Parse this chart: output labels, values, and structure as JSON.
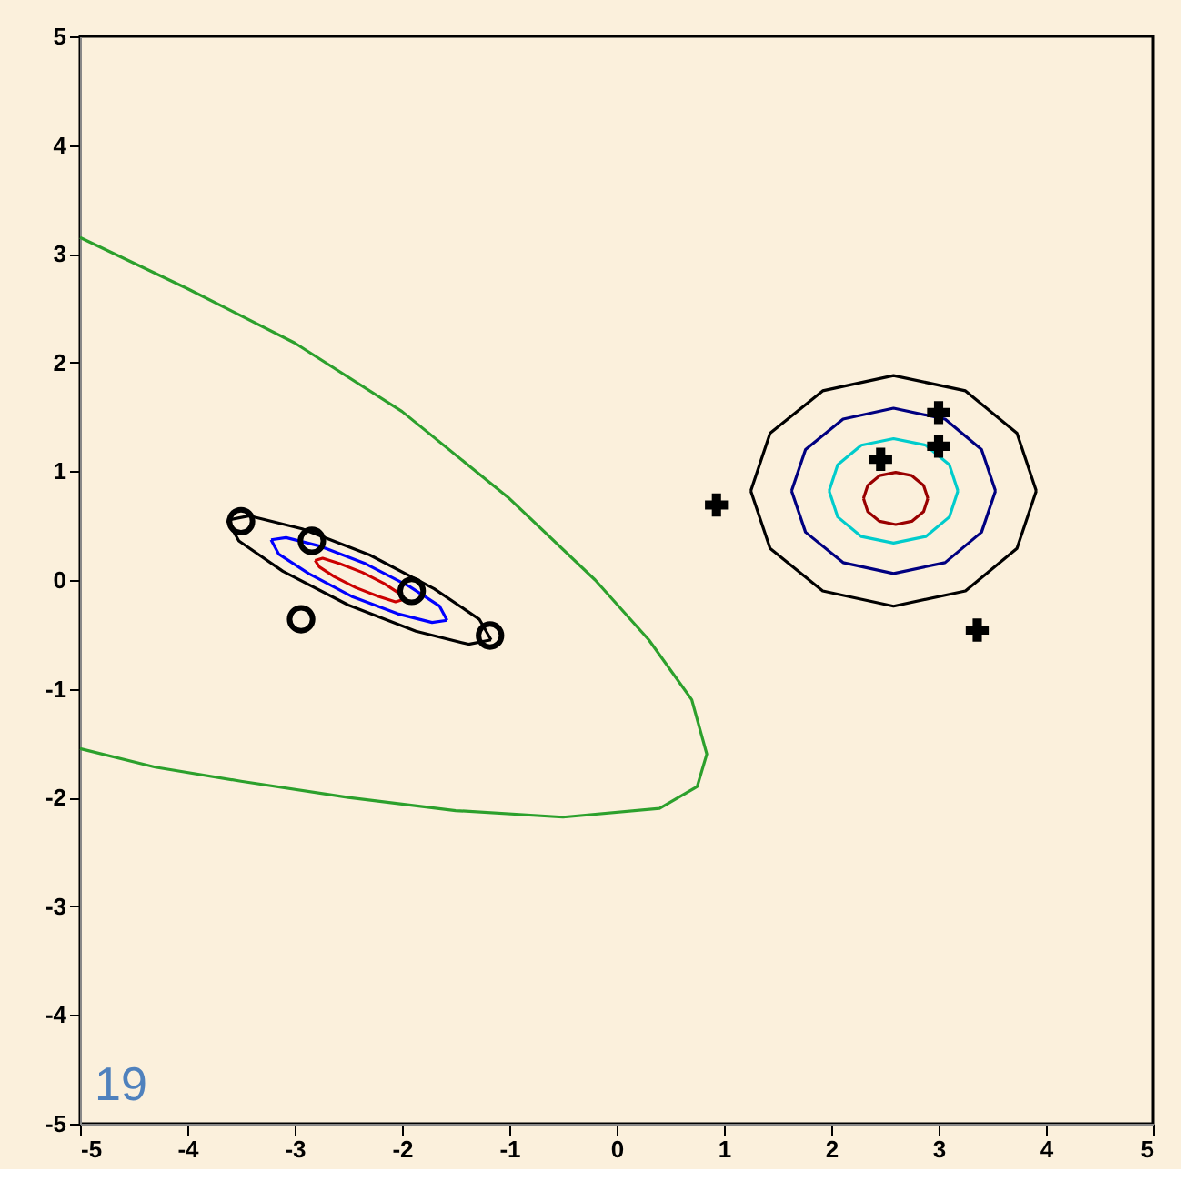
{
  "chart_data": {
    "type": "scatter",
    "xlim": [
      -5,
      5
    ],
    "ylim": [
      -5,
      5
    ],
    "xticks": [
      -5,
      -4,
      -3,
      -2,
      -1,
      0,
      1,
      2,
      3,
      4,
      5
    ],
    "yticks": [
      -5,
      -4,
      -3,
      -2,
      -1,
      0,
      1,
      2,
      3,
      4,
      5
    ],
    "grid": false,
    "annotations": [
      "19"
    ],
    "series": [
      {
        "type": "line",
        "color": "#2ca02c",
        "x": [
          -5,
          -4,
          -3,
          -2,
          -1,
          -0.2,
          0.3,
          0.7,
          0.84,
          0.75,
          0.4,
          -0.5,
          -1.5,
          -2.5,
          -3.5,
          -4.3,
          -5
        ],
        "values": [
          3.15,
          2.68,
          2.18,
          1.55,
          0.75,
          0,
          -0.55,
          -1.1,
          -1.6,
          -1.9,
          -2.1,
          -2.18,
          -2.12,
          -2.0,
          -1.85,
          -1.72,
          -1.55
        ]
      },
      {
        "type": "line",
        "color": "#000000",
        "x": [
          -1.17,
          -1.28,
          -1.7,
          -2.3,
          -2.93,
          -3.42,
          -3.63
        ],
        "values": [
          -0.55,
          -0.36,
          -0.08,
          0.23,
          0.47,
          0.59,
          0.55
        ]
      },
      {
        "type": "line",
        "color": "#000000",
        "x": [
          -3.63,
          -3.52,
          -3.11,
          -2.5,
          -1.87,
          -1.38,
          -1.17
        ],
        "values": [
          0.55,
          0.36,
          0.08,
          -0.23,
          -0.47,
          -0.59,
          -0.55
        ]
      },
      {
        "type": "line",
        "color": "#0000ff",
        "x": [
          -1.58,
          -1.65,
          -1.93,
          -2.34,
          -2.76,
          -3.08,
          -3.22
        ],
        "values": [
          -0.37,
          -0.24,
          -0.06,
          0.15,
          0.31,
          0.39,
          0.37
        ]
      },
      {
        "type": "line",
        "color": "#0000ff",
        "x": [
          -3.22,
          -3.15,
          -2.87,
          -2.47,
          -2.04,
          -1.72,
          -1.58
        ],
        "values": [
          0.37,
          0.24,
          0.06,
          -0.15,
          -0.31,
          -0.39,
          -0.37
        ]
      },
      {
        "type": "line",
        "color": "#cc0000",
        "x": [
          -1.99,
          -2.03,
          -2.17,
          -2.37,
          -2.58,
          -2.74,
          -2.81
        ],
        "values": [
          -0.18,
          -0.12,
          -0.03,
          0.07,
          0.15,
          0.2,
          0.18
        ]
      },
      {
        "type": "line",
        "color": "#cc0000",
        "x": [
          -2.81,
          -2.77,
          -2.63,
          -2.43,
          -2.22,
          -2.06,
          -1.99
        ],
        "values": [
          0.18,
          0.12,
          0.03,
          -0.07,
          -0.15,
          -0.2,
          -0.18
        ]
      },
      {
        "type": "line",
        "color": "#000000",
        "x": [
          3.91,
          3.73,
          3.25,
          2.58,
          1.92,
          1.43,
          1.25
        ],
        "values": [
          0.82,
          1.35,
          1.74,
          1.88,
          1.74,
          1.35,
          0.82
        ]
      },
      {
        "type": "line",
        "color": "#000000",
        "x": [
          1.25,
          1.43,
          1.92,
          2.58,
          3.25,
          3.73,
          3.91
        ],
        "values": [
          0.82,
          0.29,
          -0.1,
          -0.24,
          -0.1,
          0.29,
          0.82
        ]
      },
      {
        "type": "line",
        "color": "#000080",
        "x": [
          3.53,
          3.4,
          3.06,
          2.58,
          2.11,
          1.76,
          1.63
        ],
        "values": [
          0.82,
          1.2,
          1.48,
          1.58,
          1.48,
          1.2,
          0.82
        ]
      },
      {
        "type": "line",
        "color": "#000080",
        "x": [
          1.63,
          1.76,
          2.11,
          2.58,
          3.06,
          3.4,
          3.53
        ],
        "values": [
          0.82,
          0.44,
          0.16,
          0.06,
          0.16,
          0.44,
          0.82
        ]
      },
      {
        "type": "line",
        "color": "#00cccc",
        "x": [
          3.18,
          3.1,
          2.88,
          2.58,
          2.28,
          2.06,
          1.98
        ],
        "values": [
          0.82,
          1.06,
          1.24,
          1.3,
          1.24,
          1.06,
          0.82
        ]
      },
      {
        "type": "line",
        "color": "#00cccc",
        "x": [
          1.98,
          2.06,
          2.28,
          2.58,
          2.88,
          3.1,
          3.18
        ],
        "values": [
          0.82,
          0.58,
          0.4,
          0.34,
          0.4,
          0.58,
          0.82
        ]
      },
      {
        "type": "line",
        "color": "#990000",
        "x": [
          2.9,
          2.86,
          2.75,
          2.6,
          2.45,
          2.34,
          2.3
        ],
        "values": [
          0.75,
          0.87,
          0.96,
          0.99,
          0.96,
          0.87,
          0.75
        ]
      },
      {
        "type": "line",
        "color": "#990000",
        "x": [
          2.3,
          2.34,
          2.45,
          2.6,
          2.75,
          2.86,
          2.9
        ],
        "values": [
          0.75,
          0.63,
          0.54,
          0.51,
          0.54,
          0.63,
          0.75
        ]
      },
      {
        "marker": "circle",
        "color": "#000000",
        "x": [
          -3.5,
          -2.84,
          -2.94,
          -1.91,
          -1.18
        ],
        "values": [
          0.54,
          0.36,
          -0.36,
          -0.1,
          -0.51
        ]
      },
      {
        "marker": "cross",
        "color": "#000000",
        "x": [
          0.93,
          2.46,
          3.0,
          3.0,
          3.36
        ],
        "values": [
          0.69,
          1.11,
          1.54,
          1.23,
          -0.46
        ]
      }
    ]
  }
}
